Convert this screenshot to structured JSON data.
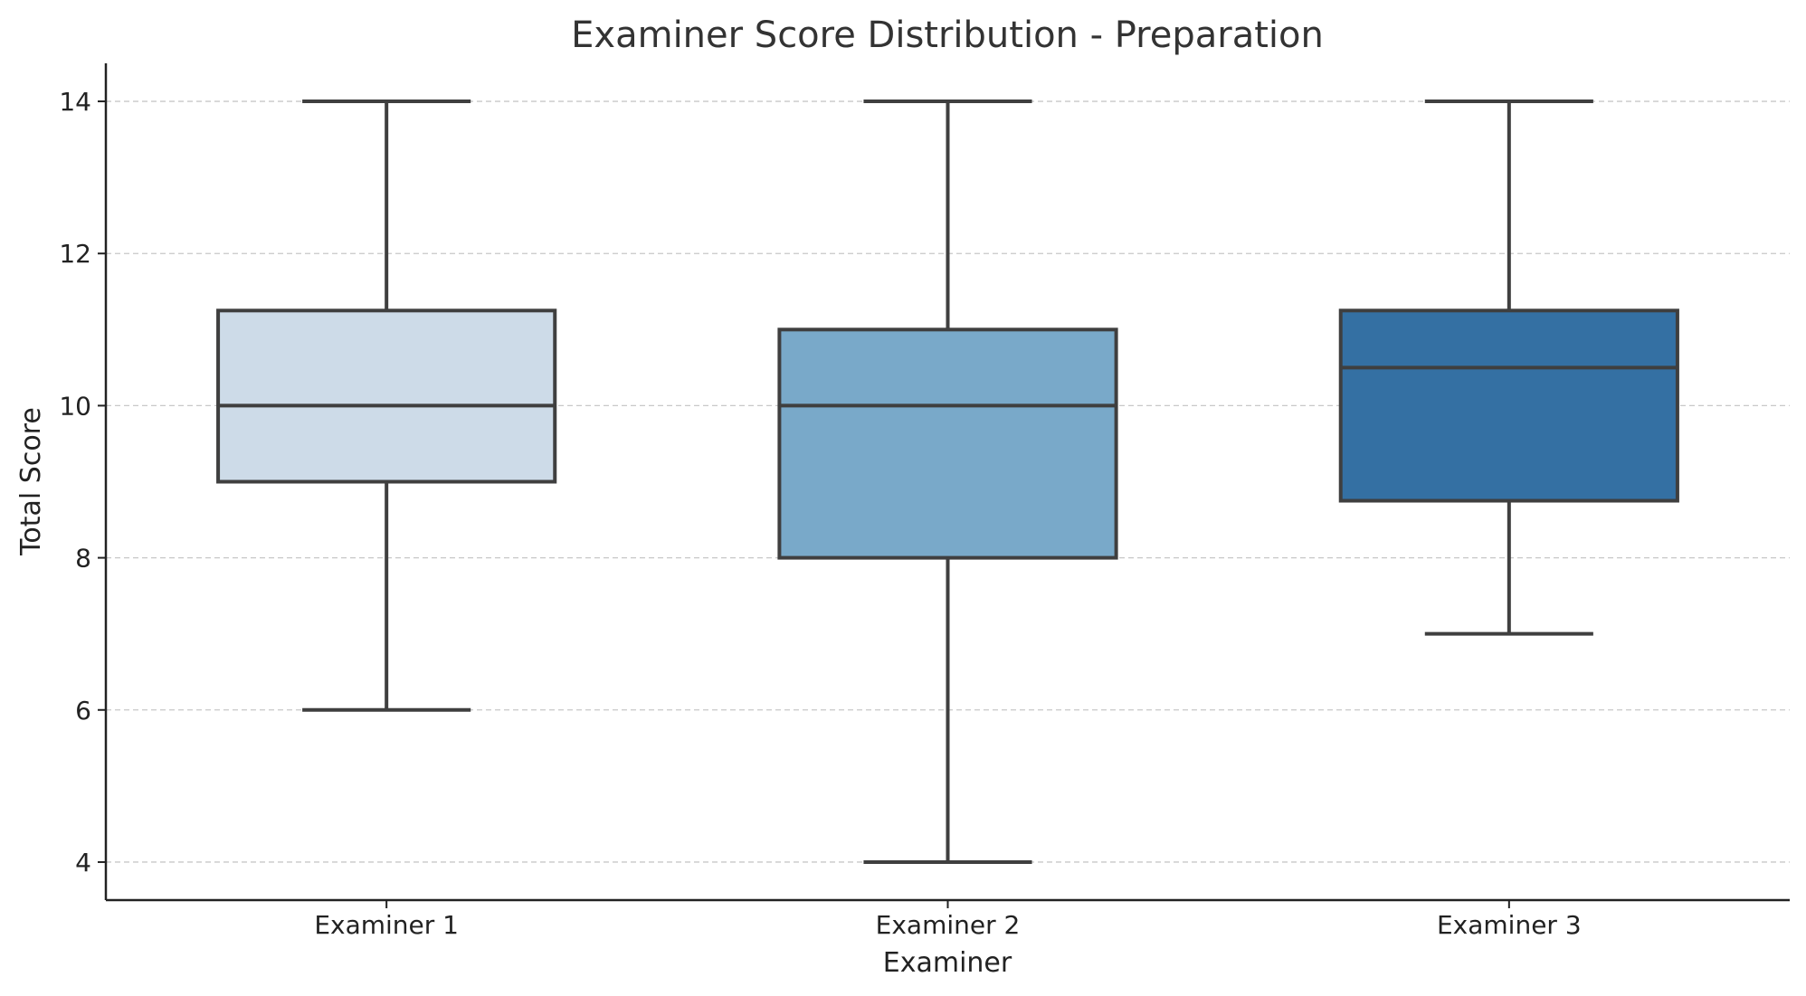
{
  "chart_data": {
    "type": "box",
    "title": "Examiner Score Distribution - Preparation",
    "xlabel": "Examiner",
    "ylabel": "Total Score",
    "categories": [
      "Examiner 1",
      "Examiner 2",
      "Examiner 3"
    ],
    "boxes": [
      {
        "name": "Examiner 1",
        "min": 6,
        "q1": 9,
        "median": 10,
        "q3": 11.25,
        "max": 14,
        "color": "#cddbe8"
      },
      {
        "name": "Examiner 2",
        "min": 4,
        "q1": 8,
        "median": 10,
        "q3": 11,
        "max": 14,
        "color": "#79a9c9"
      },
      {
        "name": "Examiner 3",
        "min": 7,
        "q1": 8.75,
        "median": 10.5,
        "q3": 11.25,
        "max": 14,
        "color": "#3470a3"
      }
    ],
    "ylim": [
      3.5,
      14.5
    ],
    "yticks": [
      4,
      6,
      8,
      10,
      12,
      14
    ],
    "grid": true
  }
}
